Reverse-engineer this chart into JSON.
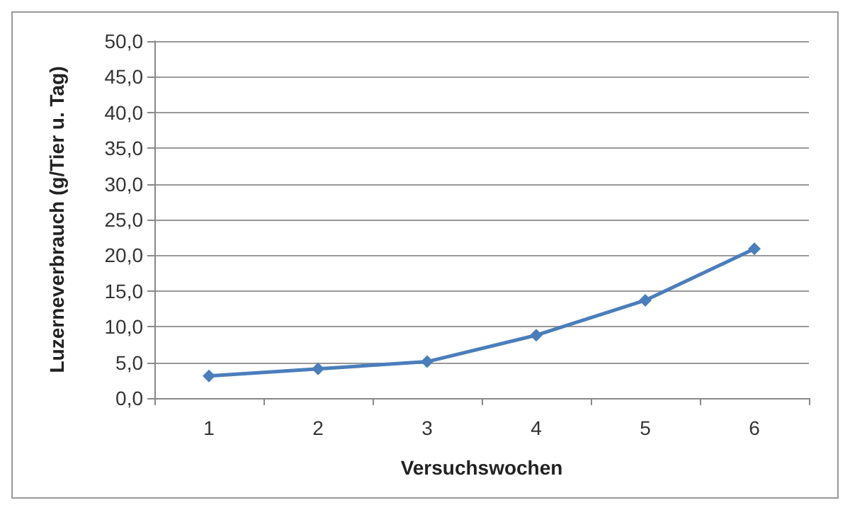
{
  "chart_data": {
    "type": "line",
    "xlabel": "Versuchswochen",
    "ylabel": "Luzerneverbrauch (g/Tier u. Tag)",
    "categories": [
      "1",
      "2",
      "3",
      "4",
      "5",
      "6"
    ],
    "series": [
      {
        "color": "#4a7ebb",
        "values": [
          3.1,
          4.1,
          5.1,
          8.8,
          13.7,
          20.9
        ]
      }
    ],
    "ylim": [
      0,
      50
    ],
    "yticks": [
      {
        "value": 0,
        "label": "0,0"
      },
      {
        "value": 5,
        "label": "5,0"
      },
      {
        "value": 10,
        "label": "10,0"
      },
      {
        "value": 15,
        "label": "15,0"
      },
      {
        "value": 20,
        "label": "20,0"
      },
      {
        "value": 25,
        "label": "25,0"
      },
      {
        "value": 30,
        "label": "30,0"
      },
      {
        "value": 35,
        "label": "35,0"
      },
      {
        "value": 40,
        "label": "40,0"
      },
      {
        "value": 45,
        "label": "45,0"
      },
      {
        "value": 50,
        "label": "50,0"
      }
    ],
    "grid": "y",
    "marker": "diamond",
    "line_style": "solid"
  }
}
